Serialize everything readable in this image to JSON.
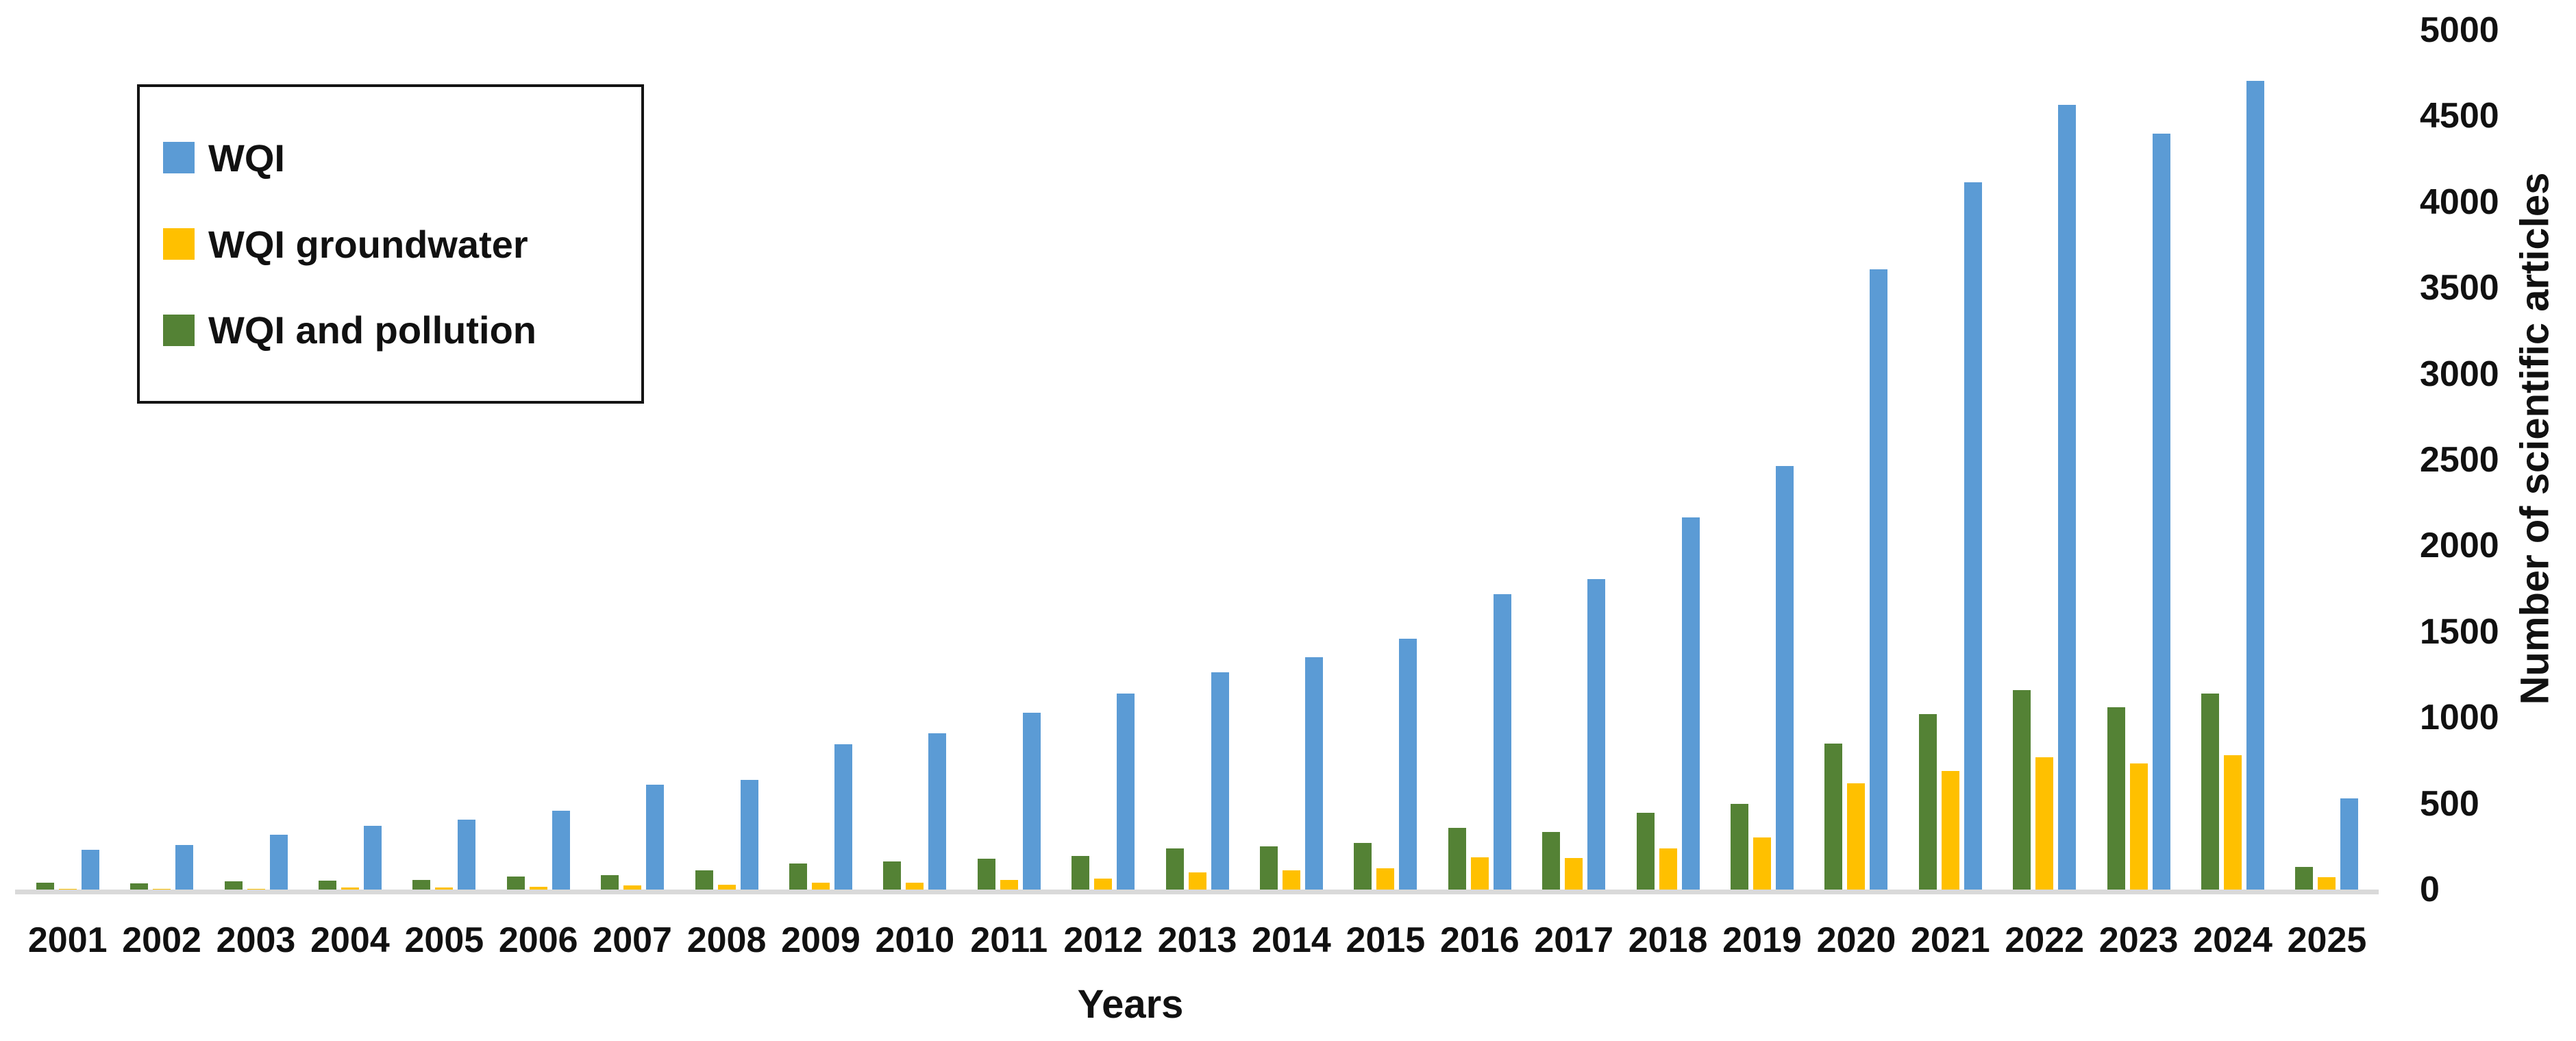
{
  "chart_data": {
    "type": "bar",
    "title": "",
    "xlabel": "Years",
    "ylabel": "Number of scientific articles",
    "ylim": [
      0,
      5000
    ],
    "ytick_step": 500,
    "grid": false,
    "legend_position": "top-left",
    "axis_line_color": "#d9d9d9",
    "categories": [
      "2001",
      "2002",
      "2003",
      "2004",
      "2005",
      "2006",
      "2007",
      "2008",
      "2009",
      "2010",
      "2011",
      "2012",
      "2013",
      "2014",
      "2015",
      "2016",
      "2017",
      "2018",
      "2019",
      "2020",
      "2021",
      "2022",
      "2023",
      "2024",
      "2025"
    ],
    "series": [
      {
        "name": "WQI",
        "color": "#5B9BD5",
        "values": [
          230,
          260,
          320,
          370,
          405,
          460,
          610,
          640,
          845,
          910,
          1030,
          1140,
          1265,
          1350,
          1460,
          1720,
          1805,
          2165,
          2465,
          3610,
          4115,
          4565,
          4400,
          4705,
          530
        ]
      },
      {
        "name": "WQI groundwater",
        "color": "#FFC000",
        "values": [
          3,
          4,
          6,
          14,
          12,
          16,
          25,
          28,
          40,
          42,
          58,
          64,
          98,
          112,
          125,
          188,
          184,
          240,
          305,
          618,
          690,
          770,
          735,
          780,
          70
        ]
      },
      {
        "name": "WQI and pollution",
        "color": "#548235",
        "values": [
          40,
          38,
          48,
          52,
          55,
          75,
          85,
          110,
          150,
          165,
          178,
          195,
          240,
          250,
          272,
          360,
          336,
          445,
          500,
          848,
          1022,
          1160,
          1060,
          1140,
          130
        ]
      }
    ],
    "bar_render_order": [
      "WQI and pollution",
      "WQI groundwater",
      "WQI"
    ]
  },
  "legend": {
    "items": [
      {
        "label": "WQI",
        "color": "#5B9BD5"
      },
      {
        "label": "WQI groundwater",
        "color": "#FFC000"
      },
      {
        "label": "WQI and pollution",
        "color": "#548235"
      }
    ]
  },
  "axes": {
    "x_title": "Years",
    "y_title": "Number of scientific articles",
    "y_tick_labels": [
      "0",
      "500",
      "1000",
      "1500",
      "2000",
      "2500",
      "3000",
      "3500",
      "4000",
      "4500",
      "5000"
    ]
  }
}
